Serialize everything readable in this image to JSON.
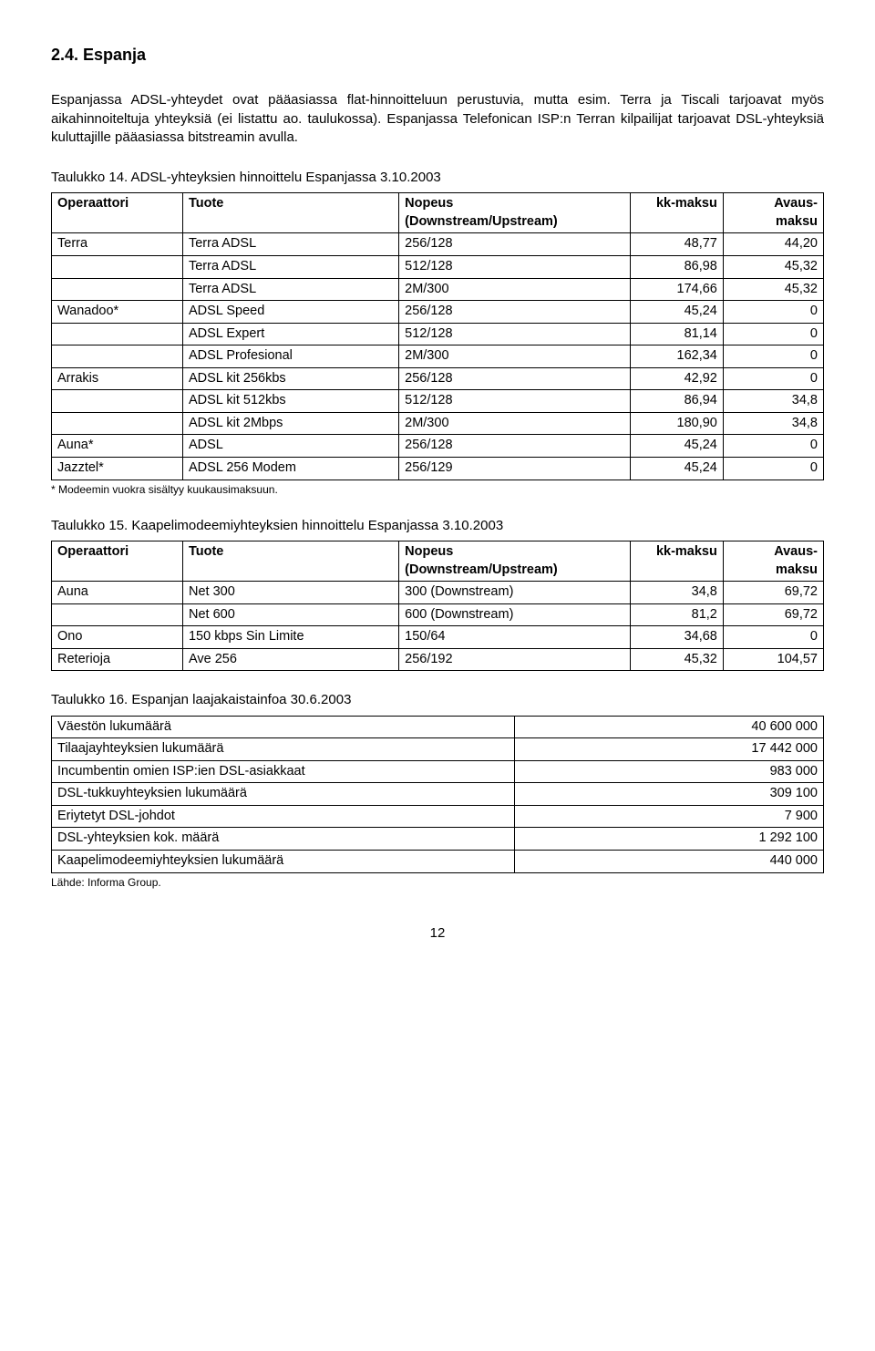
{
  "section_heading": "2.4. Espanja",
  "para1": "Espanjassa ADSL-yhteydet ovat pääasiassa flat-hinnoitteluun perustuvia, mutta esim. Terra ja Tiscali tarjoavat myös aikahinnoiteltuja yhteyksiä (ei listattu ao. taulukossa). Espanjassa Telefonican ISP:n Terran kilpailijat tarjoavat DSL-yhteyksiä kuluttajille pääasiassa bitstreamin avulla.",
  "table14_caption": "Taulukko 14.  ADSL-yhteyksien hinnoittelu Espanjassa 3.10.2003",
  "table14_headers": {
    "op": "Operaattori",
    "prod": "Tuote",
    "speed_l1": "Nopeus",
    "speed_l2": "(Downstream/Upstream)",
    "kk": "kk-maksu",
    "av_l1": "Avaus-",
    "av_l2": "maksu"
  },
  "table14_rows": [
    {
      "op": "Terra",
      "prod": "Terra ADSL",
      "speed": "256/128",
      "kk": "48,77",
      "av": "44,20"
    },
    {
      "op": "",
      "prod": "Terra ADSL",
      "speed": "512/128",
      "kk": "86,98",
      "av": "45,32"
    },
    {
      "op": "",
      "prod": "Terra ADSL",
      "speed": "2M/300",
      "kk": "174,66",
      "av": "45,32"
    },
    {
      "op": "Wanadoo*",
      "prod": "ADSL Speed",
      "speed": "256/128",
      "kk": "45,24",
      "av": "0"
    },
    {
      "op": "",
      "prod": "ADSL Expert",
      "speed": "512/128",
      "kk": "81,14",
      "av": "0"
    },
    {
      "op": "",
      "prod": "ADSL Profesional",
      "speed": "2M/300",
      "kk": "162,34",
      "av": "0"
    },
    {
      "op": "Arrakis",
      "prod": "ADSL kit 256kbs",
      "speed": "256/128",
      "kk": "42,92",
      "av": "0"
    },
    {
      "op": "",
      "prod": "ADSL kit 512kbs",
      "speed": "512/128",
      "kk": "86,94",
      "av": "34,8"
    },
    {
      "op": "",
      "prod": "ADSL kit 2Mbps",
      "speed": "2M/300",
      "kk": "180,90",
      "av": "34,8"
    },
    {
      "op": "Auna*",
      "prod": "ADSL",
      "speed": "256/128",
      "kk": "45,24",
      "av": "0"
    },
    {
      "op": "Jazztel*",
      "prod": "ADSL 256 Modem",
      "speed": "256/129",
      "kk": "45,24",
      "av": "0"
    }
  ],
  "table14_footnote": "* Modeemin vuokra sisältyy kuukausimaksuun.",
  "table15_caption": "Taulukko 15. Kaapelimodeemiyhteyksien hinnoittelu Espanjassa 3.10.2003",
  "table15_rows": [
    {
      "op": "Auna",
      "prod": "Net 300",
      "speed": "300 (Downstream)",
      "kk": "34,8",
      "av": "69,72"
    },
    {
      "op": "",
      "prod": "Net 600",
      "speed": "600 (Downstream)",
      "kk": "81,2",
      "av": "69,72"
    },
    {
      "op": "Ono",
      "prod": "150 kbps Sin Limite",
      "speed": "150/64",
      "kk": "34,68",
      "av": "0"
    },
    {
      "op": "Reterioja",
      "prod": "Ave 256",
      "speed": "256/192",
      "kk": "45,32",
      "av": "104,57"
    }
  ],
  "table16_caption": "Taulukko 16. Espanjan laajakaistainfoa 30.6.2003",
  "table16_rows": [
    {
      "label": "Väestön lukumäärä",
      "val": "40 600 000"
    },
    {
      "label": "Tilaajayhteyksien lukumäärä",
      "val": "17 442 000"
    },
    {
      "label": "Incumbentin omien ISP:ien DSL-asiakkaat",
      "val": "983 000"
    },
    {
      "label": "DSL-tukkuyhteyksien lukumäärä",
      "val": "309 100"
    },
    {
      "label": "Eriytetyt  DSL-johdot",
      "val": "7 900"
    },
    {
      "label": "DSL-yhteyksien kok. määrä",
      "val": "1 292 100"
    },
    {
      "label": "Kaapelimodeemiyhteyksien lukumäärä",
      "val": "440 000"
    }
  ],
  "table16_footnote": "Lähde: Informa Group.",
  "pagenum": "12",
  "col_widths": {
    "op": "17%",
    "prod": "28%",
    "speed": "30%",
    "kk": "12%",
    "av": "13%"
  },
  "info_col_widths": {
    "label": "60%",
    "val": "40%"
  }
}
